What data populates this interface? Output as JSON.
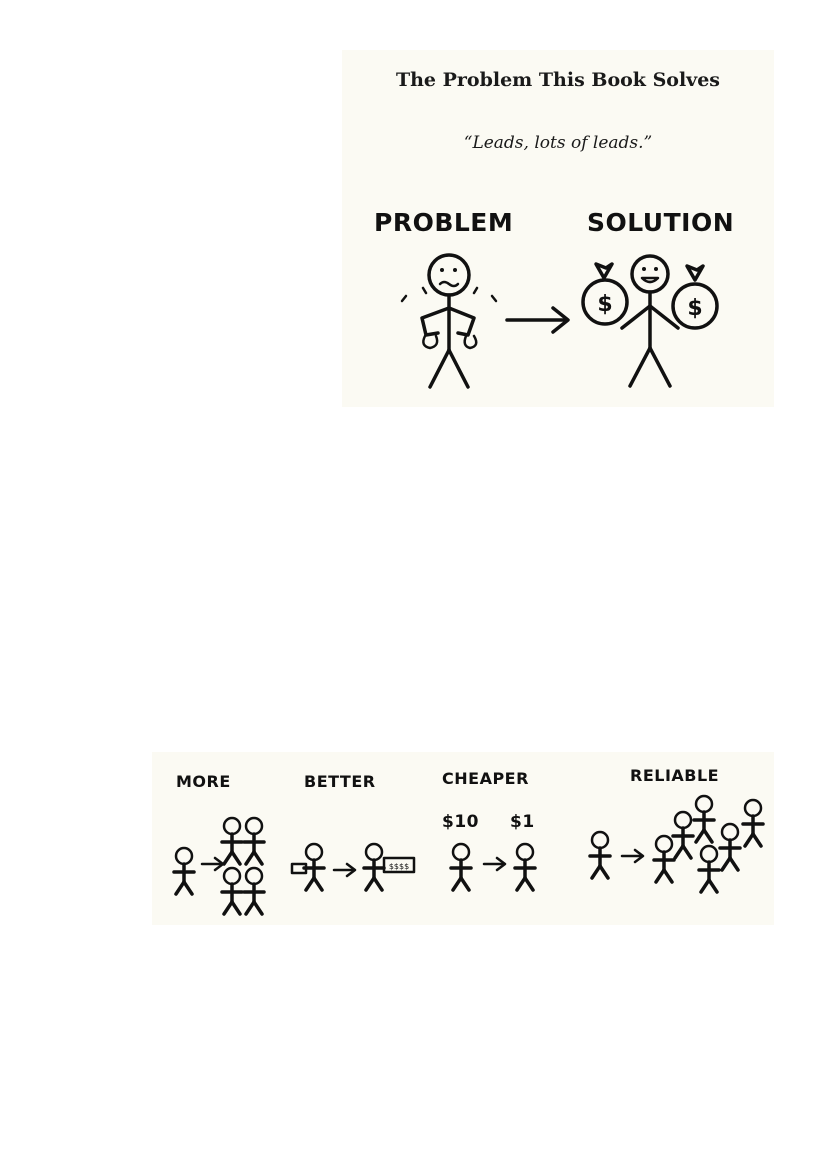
{
  "illustration_top": {
    "title": "The Problem This Book Solves",
    "quote": "“Leads, lots of leads.”",
    "problem_label": "PROBLEM",
    "solution_label": "SOLUTION",
    "money_symbol": "$"
  },
  "illustration_bottom": {
    "more_label": "MORE",
    "better_label": "BETTER",
    "cheaper_label": "CHEAPER",
    "reliable_label": "RELIABLE",
    "price_before": "$10",
    "price_after": "$1",
    "small_card_text": "$",
    "big_card_text": "$$$$"
  }
}
